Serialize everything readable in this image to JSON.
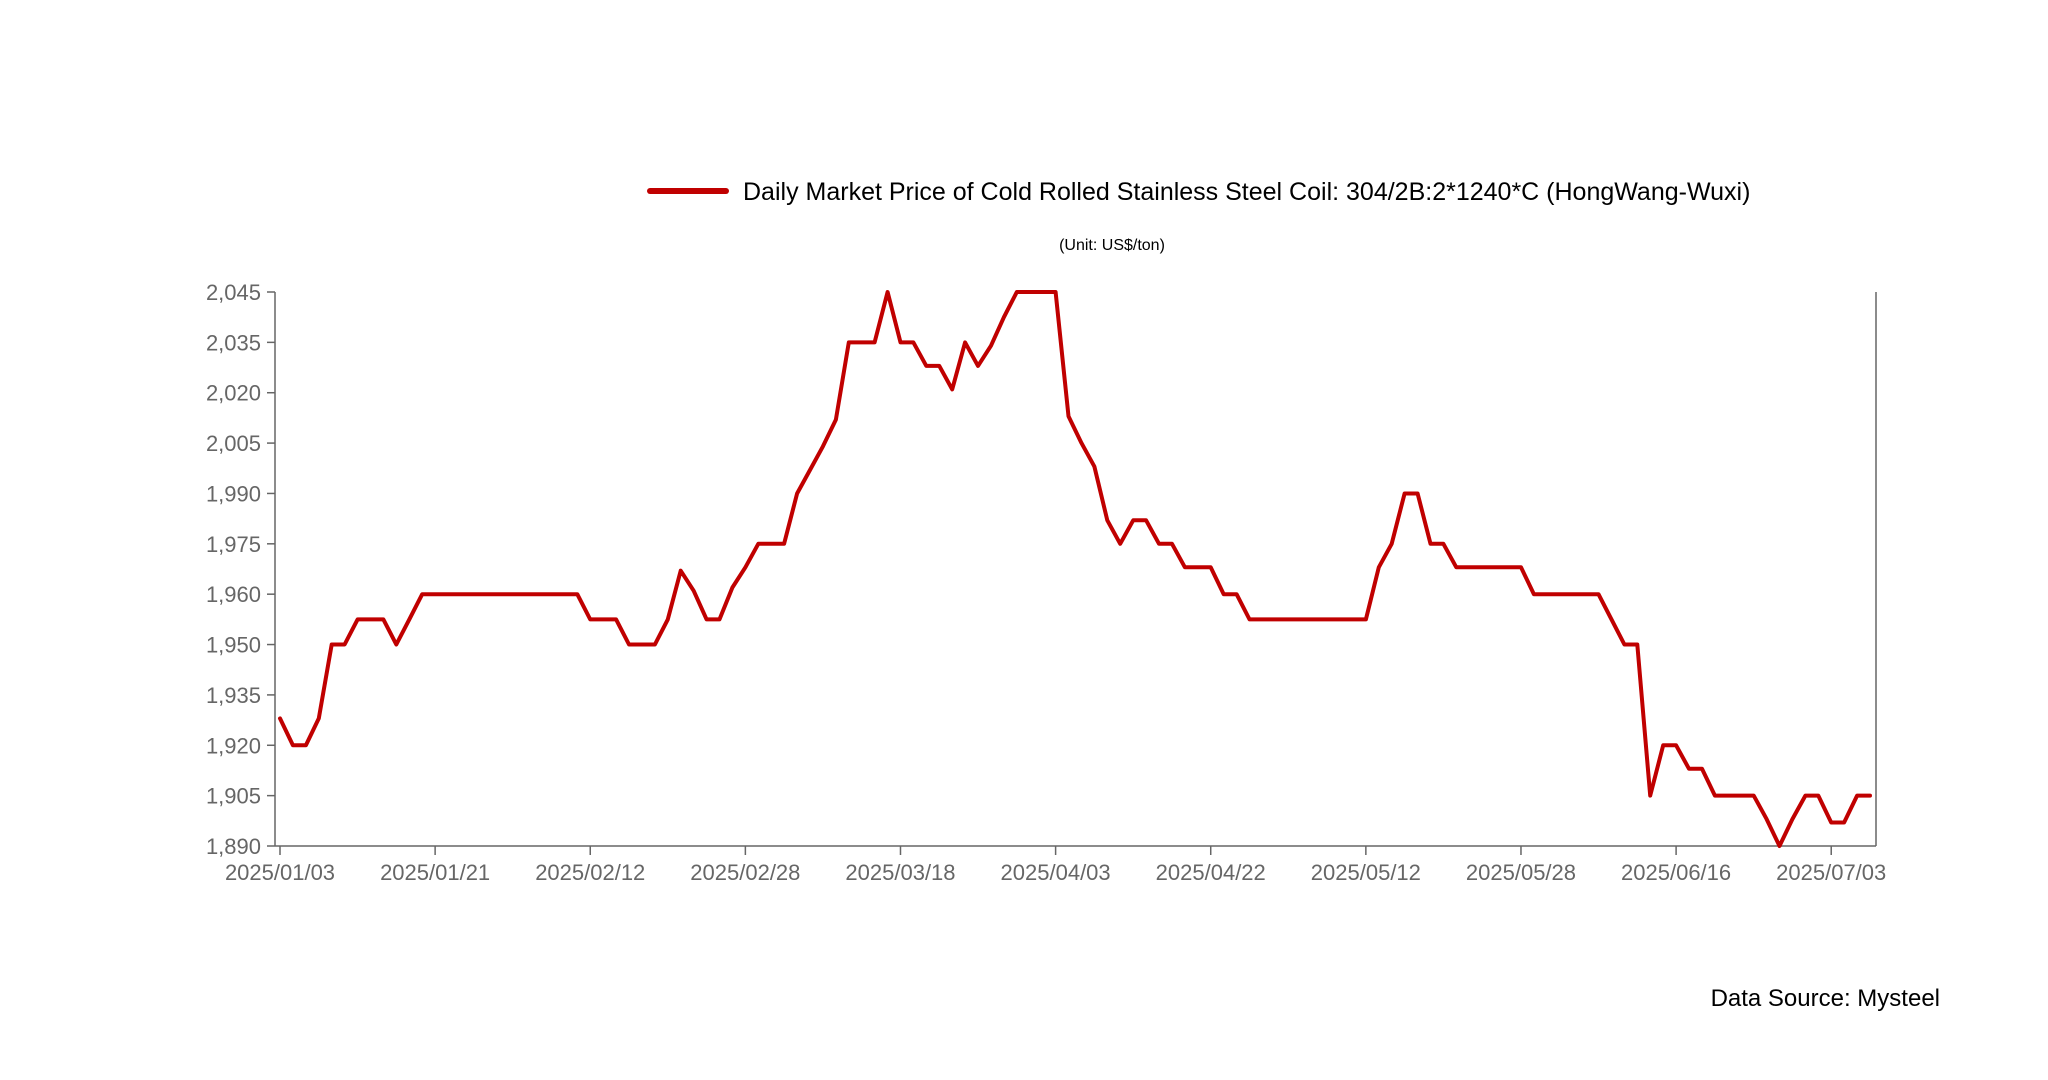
{
  "chart_data": {
    "type": "line",
    "title": "",
    "subtitle": "(Unit: US$/ton)",
    "xlabel": "",
    "ylabel": "",
    "source": "Data Source: Mysteel",
    "legend_position": "top-center",
    "grid": false,
    "line_color": "#C00000",
    "axis_color": "#666666",
    "ylim": [
      1890,
      2045
    ],
    "y_ticks": [
      1890,
      1905,
      1920,
      1935,
      1950,
      1960,
      1975,
      1990,
      2005,
      2020,
      2035,
      2045
    ],
    "y_tick_labels": [
      "1,890",
      "1,905",
      "1,920",
      "1,935",
      "1,950",
      "1,960",
      "1,975",
      "1,990",
      "2,005",
      "2,020",
      "2,035",
      "2,045"
    ],
    "x_tick_labels": [
      "2025/01/03",
      "2025/01/21",
      "2025/02/12",
      "2025/02/28",
      "2025/03/18",
      "2025/04/03",
      "2025/04/22",
      "2025/05/12",
      "2025/05/28",
      "2025/06/16",
      "2025/07/03"
    ],
    "x_tick_index": [
      0,
      12,
      24,
      36,
      48,
      60,
      72,
      84,
      96,
      108,
      120
    ],
    "series": [
      {
        "name": "Daily Market Price of Cold Rolled Stainless Steel Coil: 304/2B:2*1240*C (HongWang-Wuxi)",
        "values": [
          1928,
          1920,
          1920,
          1928,
          1950,
          1950,
          1955,
          1955,
          1955,
          1950,
          1955,
          1960,
          1960,
          1960,
          1960,
          1960,
          1960,
          1960,
          1960,
          1960,
          1960,
          1960,
          1960,
          1960,
          1955,
          1955,
          1955,
          1950,
          1950,
          1950,
          1955,
          1967,
          1961,
          1955,
          1955,
          1962,
          1968,
          1975,
          1975,
          1975,
          1990,
          1997,
          2004,
          2012,
          2035,
          2035,
          2035,
          2045,
          2035,
          2035,
          2028,
          2028,
          2021,
          2035,
          2028,
          2034,
          2040,
          2045,
          2045,
          2045,
          2045,
          2013,
          2005,
          1998,
          1982,
          1975,
          1982,
          1982,
          1975,
          1975,
          1968,
          1968,
          1968,
          1960,
          1960,
          1955,
          1955,
          1955,
          1955,
          1955,
          1955,
          1955,
          1955,
          1955,
          1955,
          1968,
          1975,
          1990,
          1990,
          1975,
          1975,
          1968,
          1968,
          1968,
          1968,
          1968,
          1968,
          1960,
          1960,
          1960,
          1960,
          1960,
          1960,
          1955,
          1950,
          1950,
          1905,
          1920,
          1920,
          1913,
          1913,
          1905,
          1905,
          1905,
          1905,
          1898,
          1890,
          1898,
          1905,
          1905,
          1897,
          1897,
          1905,
          1905
        ]
      }
    ]
  }
}
